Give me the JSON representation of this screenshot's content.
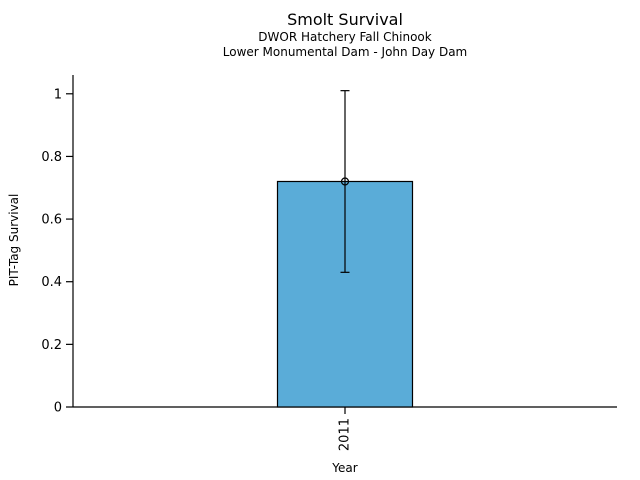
{
  "chart_data": {
    "type": "bar",
    "title": "Smolt Survival",
    "subtitle1": "DWOR Hatchery Fall Chinook",
    "subtitle2": "Lower Monumental Dam - John Day Dam",
    "xlabel": "Year",
    "ylabel": "PIT-Tag Survival",
    "categories": [
      "2011"
    ],
    "values": [
      0.72
    ],
    "error_bars": [
      {
        "low": 0.43,
        "high": 1.01
      }
    ],
    "marker": "open-circle",
    "yticks": [
      0,
      0.2,
      0.4,
      0.6,
      0.8,
      1
    ],
    "ytick_labels": [
      "0",
      "0.2",
      "0.4",
      "0.6",
      "0.8",
      "1"
    ],
    "ylim": [
      0,
      1.06
    ],
    "grid": false,
    "legend": null,
    "bar_color": "#5AACD8",
    "edge_color": "#000000",
    "axis_color": "#000000",
    "text_color": "#000000"
  }
}
